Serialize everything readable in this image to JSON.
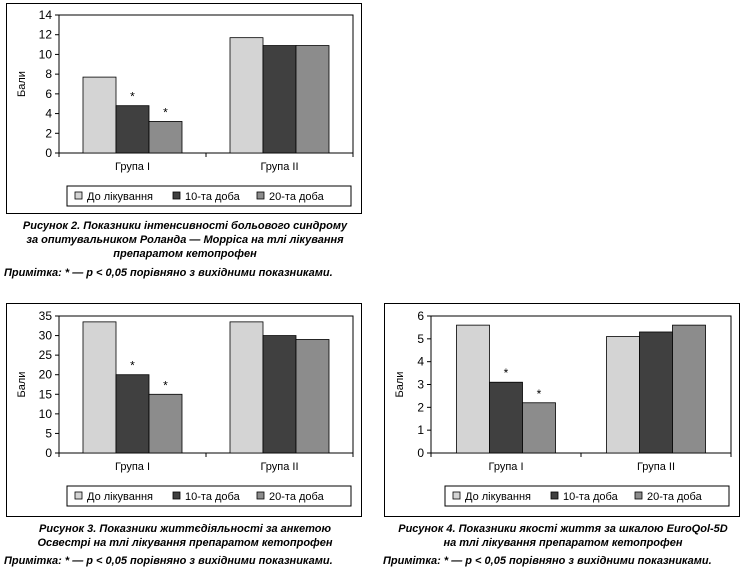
{
  "colors": {
    "before": "#d4d4d4",
    "day10": "#404040",
    "day20": "#8c8c8c"
  },
  "note": {
    "label": "Примітка:",
    "text": " * — p < 0,05 порівняно з вихідними показниками."
  },
  "chart_data": [
    {
      "type": "bar",
      "ylabel": "Бали",
      "ylim": [
        0,
        14
      ],
      "yticks": [
        "0",
        "2",
        "4",
        "6",
        "8",
        "10",
        "12",
        "14"
      ],
      "categories": [
        "Група I",
        "Група II"
      ],
      "series": [
        {
          "name": "До лікування",
          "values": [
            7.7,
            11.7
          ]
        },
        {
          "name": "10-та доба",
          "values": [
            4.8,
            10.9
          ]
        },
        {
          "name": "20-та доба",
          "values": [
            3.2,
            10.9
          ]
        }
      ],
      "significance": [
        [
          false,
          false
        ],
        [
          true,
          false
        ],
        [
          true,
          false
        ]
      ],
      "sig_mark": "*",
      "grid": false,
      "legend": "bottom",
      "caption": [
        "Рисунок 2. Показники інтенсивності больового синдрому",
        "за опитувальником Роланда — Морріса на тлі лікування",
        "препаратом кетопрофен"
      ]
    },
    {
      "type": "bar",
      "ylabel": "Бали",
      "ylim": [
        0,
        35
      ],
      "yticks": [
        "0",
        "5",
        "10",
        "15",
        "20",
        "25",
        "30",
        "35"
      ],
      "categories": [
        "Група I",
        "Група II"
      ],
      "series": [
        {
          "name": "До лікування",
          "values": [
            33.5,
            33.5
          ]
        },
        {
          "name": "10-та доба",
          "values": [
            20,
            30
          ]
        },
        {
          "name": "20-та доба",
          "values": [
            15,
            29
          ]
        }
      ],
      "significance": [
        [
          false,
          false
        ],
        [
          true,
          false
        ],
        [
          true,
          false
        ]
      ],
      "sig_mark": "*",
      "grid": false,
      "legend": "bottom",
      "caption": [
        "Рисунок 3. Показники життєдіяльності за анкетою",
        "Освестрі на тлі лікування препаратом кетопрофен"
      ]
    },
    {
      "type": "bar",
      "ylabel": "Бали",
      "ylim": [
        0,
        6
      ],
      "yticks": [
        "0",
        "1",
        "2",
        "3",
        "4",
        "5",
        "6"
      ],
      "categories": [
        "Група I",
        "Група II"
      ],
      "series": [
        {
          "name": "До лікування",
          "values": [
            5.6,
            5.1
          ]
        },
        {
          "name": "10-та доба",
          "values": [
            3.1,
            5.3
          ]
        },
        {
          "name": "20-та доба",
          "values": [
            2.2,
            5.6
          ]
        }
      ],
      "significance": [
        [
          false,
          false
        ],
        [
          true,
          false
        ],
        [
          true,
          false
        ]
      ],
      "sig_mark": "*",
      "grid": false,
      "legend": "bottom",
      "caption": [
        "Рисунок 4. Показники якості життя за шкалою EuroQol-5D",
        "на тлі лікування препаратом кетопрофен"
      ]
    }
  ]
}
